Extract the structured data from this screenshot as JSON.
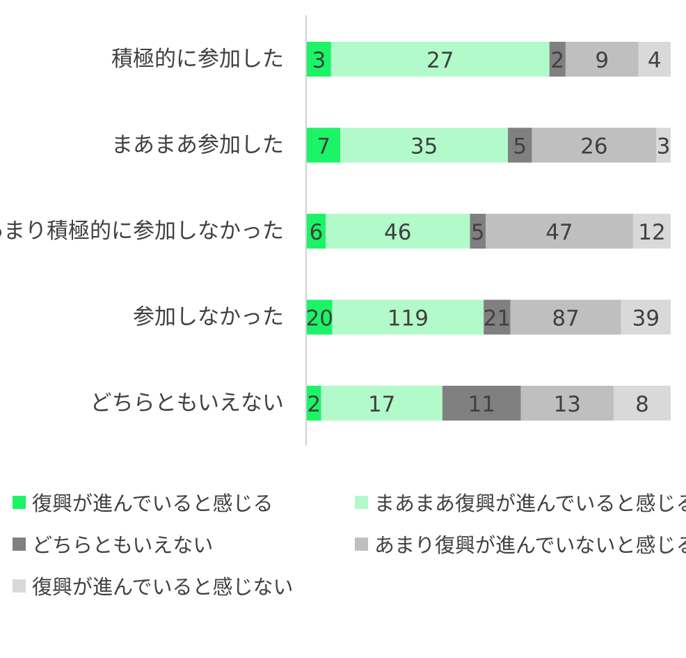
{
  "chart_data": {
    "type": "bar",
    "orientation": "horizontal",
    "stacked": true,
    "normalized": true,
    "title": "",
    "xlabel": "",
    "ylabel": "",
    "grid": false,
    "legend_position": "bottom",
    "categories": [
      "積極的に参加した",
      "まあまあ参加した",
      "あまり積極的に参加しなかった",
      "参加しなかった",
      "どちらともいえない"
    ],
    "series": [
      {
        "name": "復興が進んでいると感じる",
        "color": "#1CF467",
        "values": [
          3,
          7,
          6,
          20,
          2
        ]
      },
      {
        "name": "まあまあ復興が進んでいると感じる",
        "color": "#B3FACB",
        "values": [
          27,
          35,
          46,
          119,
          17
        ]
      },
      {
        "name": "どちらともいえない",
        "color": "#808080",
        "values": [
          2,
          5,
          5,
          21,
          11
        ]
      },
      {
        "name": "あまり復興が進んでいないと感じる",
        "color": "#BFBFBF",
        "values": [
          9,
          26,
          47,
          87,
          13
        ]
      },
      {
        "name": "復興が進んでいると感じない",
        "color": "#D9D9D9",
        "values": [
          4,
          3,
          12,
          39,
          8
        ]
      }
    ]
  }
}
